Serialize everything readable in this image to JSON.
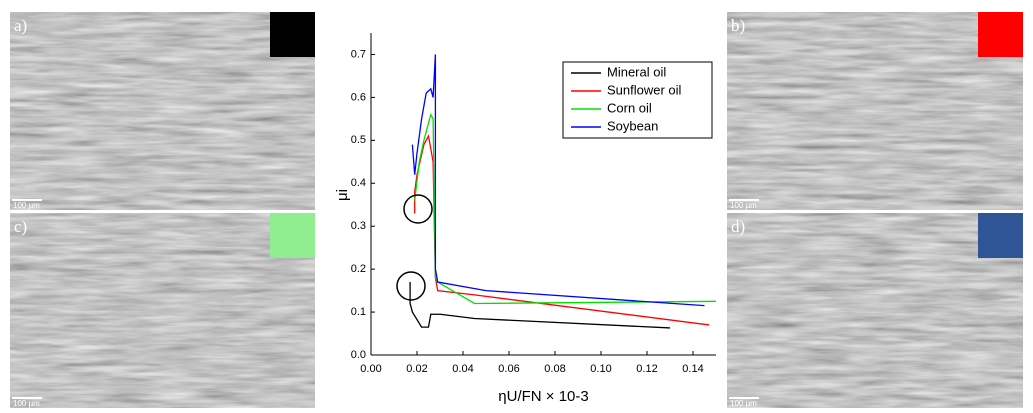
{
  "panels": [
    {
      "label": "a)",
      "scale_bar": "100 µm",
      "color": "#000000"
    },
    {
      "label": "b)",
      "scale_bar": "100 µm",
      "color": "#ff0000"
    },
    {
      "label": "c)",
      "scale_bar": "100 µm",
      "color": "#90ee90"
    },
    {
      "label": "d)",
      "scale_bar": "100 µm",
      "color": "#2f5597"
    }
  ],
  "chart_data": {
    "type": "line",
    "x_label": "ηU/FN × 10-3",
    "y_label": "μi",
    "xlim": [
      0,
      0.15
    ],
    "ylim": [
      0,
      0.75
    ],
    "xticks": [
      {
        "value": 0,
        "label": "0.00"
      },
      {
        "value": 0.02,
        "label": "0.02"
      },
      {
        "value": 0.04,
        "label": "0.04"
      },
      {
        "value": 0.06,
        "label": "0.06"
      },
      {
        "value": 0.08,
        "label": "0.08"
      },
      {
        "value": 0.1,
        "label": "0.10"
      },
      {
        "value": 0.12,
        "label": "0.12"
      },
      {
        "value": 0.14,
        "label": "0.14"
      }
    ],
    "yticks": [
      {
        "value": 0,
        "label": "0.0"
      },
      0.1,
      0.2,
      0.3,
      0.4,
      0.5,
      0.6,
      0.7
    ],
    "legend": "top-right",
    "series": [
      {
        "name": "Mineral oil",
        "color": "#000000",
        "x": [
          0.017,
          0.017,
          0.018,
          0.022,
          0.025,
          0.026,
          0.03,
          0.045,
          0.13
        ],
        "values": [
          0.17,
          0.12,
          0.1,
          0.065,
          0.065,
          0.095,
          0.095,
          0.085,
          0.063
        ]
      },
      {
        "name": "Sunflower oil",
        "color": "#ff0000",
        "x": [
          0.019,
          0.019,
          0.02,
          0.023,
          0.025,
          0.027,
          0.028,
          0.029,
          0.045,
          0.147
        ],
        "values": [
          0.33,
          0.38,
          0.42,
          0.49,
          0.51,
          0.45,
          0.18,
          0.15,
          0.14,
          0.07
        ]
      },
      {
        "name": "Corn oil",
        "color": "#00e000",
        "x": [
          0.019,
          0.021,
          0.023,
          0.026,
          0.027,
          0.028,
          0.029,
          0.045,
          0.15
        ],
        "values": [
          0.36,
          0.45,
          0.5,
          0.56,
          0.55,
          0.18,
          0.17,
          0.12,
          0.125
        ]
      },
      {
        "name": "Soybean",
        "color": "#0000ff",
        "x": [
          0.018,
          0.019,
          0.02,
          0.022,
          0.024,
          0.026,
          0.027,
          0.028,
          0.028,
          0.029,
          0.05,
          0.145
        ],
        "values": [
          0.49,
          0.42,
          0.47,
          0.55,
          0.61,
          0.62,
          0.6,
          0.7,
          0.2,
          0.17,
          0.15,
          0.115
        ]
      }
    ]
  }
}
